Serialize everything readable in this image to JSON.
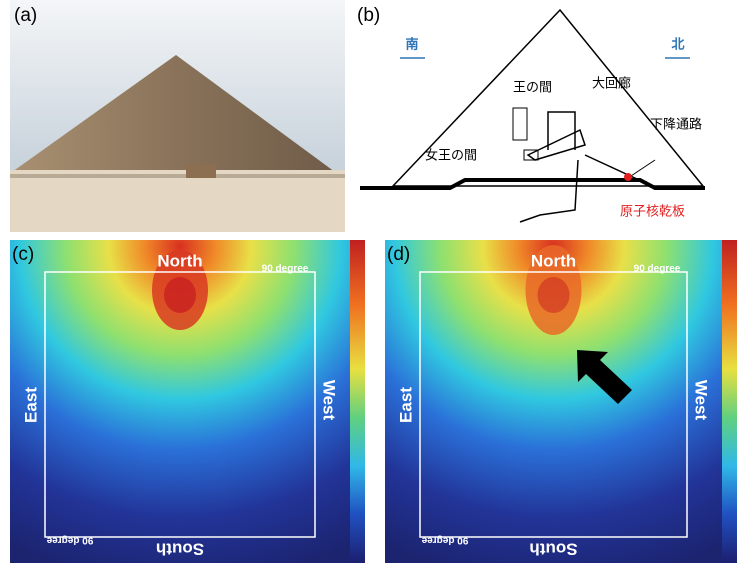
{
  "panels": [
    {
      "label": "(a)"
    },
    {
      "label": "(b)",
      "south": "南",
      "north": "北",
      "king_chamber": "王の間",
      "grand_gallery": "大回廊",
      "queen_chamber": "女王の間",
      "descending_passage": "下降通路",
      "detector": "原子核乾板"
    },
    {
      "label": "(c)",
      "north": "North",
      "east": "East",
      "west": "West",
      "south": "South",
      "angle_top": "90 degree",
      "angle_bottom": "90 degree"
    },
    {
      "label": "(d)",
      "north": "North",
      "east": "East",
      "west": "West",
      "south": "South",
      "angle_top": "90 degree",
      "angle_bottom": "90 degree"
    }
  ]
}
